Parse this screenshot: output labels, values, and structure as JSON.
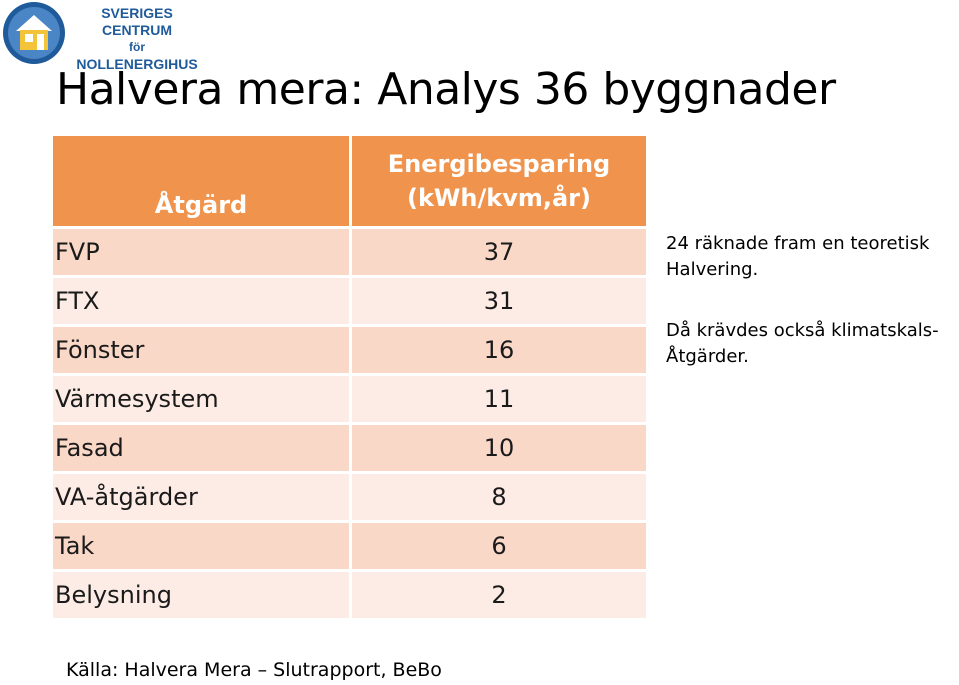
{
  "logo": {
    "line1": "SVERIGES CENTRUM",
    "line2": "för",
    "line3": "NOLLENERGIHUS"
  },
  "title": "Halvera mera: Analys 36 byggnader",
  "table": {
    "headers": [
      "Åtgärd",
      "Energibesparing",
      "(kWh/kvm,år)"
    ],
    "rows": [
      {
        "name": "FVP",
        "value": "37"
      },
      {
        "name": "FTX",
        "value": "31"
      },
      {
        "name": "Fönster",
        "value": "16"
      },
      {
        "name": "Värmesystem",
        "value": "11"
      },
      {
        "name": "Fasad",
        "value": "10"
      },
      {
        "name": "VA-åtgärder",
        "value": "8"
      },
      {
        "name": "Tak",
        "value": "6"
      },
      {
        "name": "Belysning",
        "value": "2"
      }
    ]
  },
  "notes": {
    "note1_line1": "24 räknade fram en teoretisk",
    "note1_line2": "Halvering.",
    "note2_line1": "Då krävdes också klimatskals-",
    "note2_line2": "Åtgärder."
  },
  "source": "Källa: Halvera Mera – Slutrapport, BeBo",
  "colors": {
    "header_bg": "#f0944d",
    "row_dark": "#fad8c8",
    "row_light": "#fdece5",
    "logo_blue": "#1f5a9a"
  }
}
